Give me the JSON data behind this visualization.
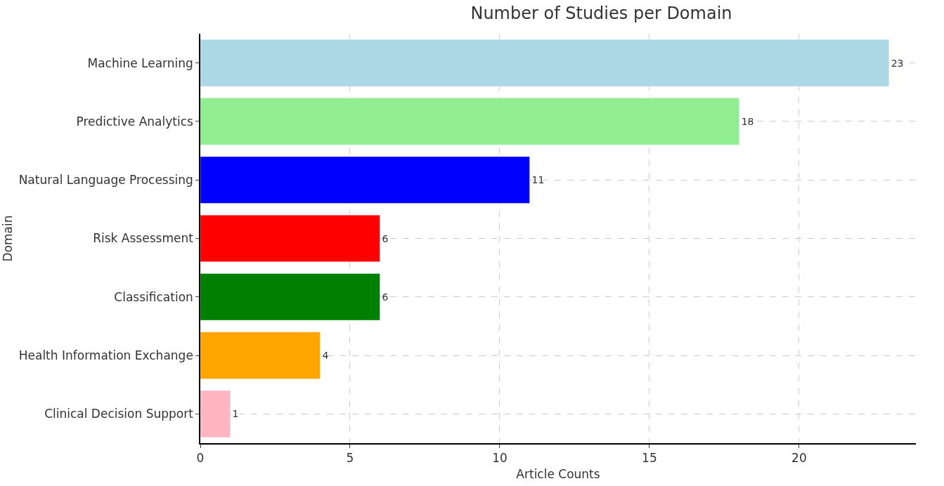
{
  "chart_data": {
    "type": "bar",
    "orientation": "horizontal",
    "title": "Number of Studies per Domain",
    "xlabel": "Article Counts",
    "ylabel": "Domain",
    "categories": [
      "Machine Learning",
      "Predictive Analytics",
      "Natural Language Processing",
      "Risk Assessment",
      "Classification",
      "Health Information Exchange",
      "Clinical Decision Support"
    ],
    "values": [
      23,
      18,
      11,
      6,
      6,
      4,
      1
    ],
    "colors": [
      "#add8e6",
      "#90ee90",
      "#0000ff",
      "#ff0000",
      "#008000",
      "#ffa500",
      "#ffb6c1"
    ],
    "xlim": [
      0,
      23.9
    ],
    "xticks": [
      0,
      5,
      10,
      15,
      20
    ],
    "grid": true,
    "data_labels": true
  }
}
